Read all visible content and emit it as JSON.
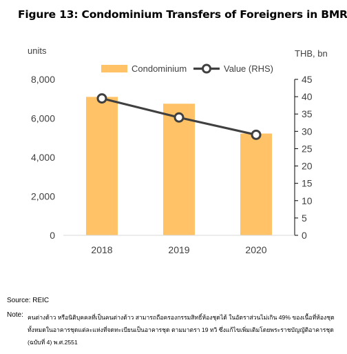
{
  "title": "Figure 13: Condominium Transfers of Foreigners in BMR",
  "y_unit_left": "units",
  "y_unit_right": "THB, bn",
  "source": "Source: REIC",
  "note_label": "Note:",
  "note_text": "คนต่างด้าว หรือนิติบุคคลที่เป็นคนต่างด้าว สามารถถือครองกรรมสิทธิ์ห้องชุดได้ ในอัตราส่วนไม่เกิน 49% ของเนื้อที่ห้องชุดทั้งหมดในอาคารชุดแต่ละแห่งที่จดทะเบียนเป็นอาคารชุด ตามมาตรา 19 ทวิ ซึ่งแก้ไขเพิ่มเติมโดยพระราชบัญญัติอาคารชุด (ฉบับที่ 4) พ.ศ.2551",
  "chart_data": {
    "type": "bar",
    "categories": [
      "2018",
      "2019",
      "2020"
    ],
    "series": [
      {
        "name": "Condominium",
        "type": "bar",
        "axis": "left",
        "values": [
          7100,
          6750,
          5220
        ]
      },
      {
        "name": "Value (RHS)",
        "type": "line",
        "axis": "right",
        "values": [
          39.5,
          34,
          29
        ]
      }
    ],
    "y_left": {
      "label": "units",
      "min": 0,
      "max": 8000,
      "step": 2000,
      "tick_labels": [
        "0",
        "2,000",
        "4,000",
        "6,000",
        "8,000"
      ]
    },
    "y_right": {
      "label": "THB, bn",
      "min": 0,
      "max": 45,
      "step": 5,
      "tick_labels": [
        "0",
        "5",
        "10",
        "15",
        "20",
        "25",
        "30",
        "35",
        "40",
        "45"
      ]
    },
    "grid": false,
    "legend": "top",
    "colors": {
      "bar": "#FFC266",
      "line": "#404040",
      "marker_fill": "#ffffff"
    }
  }
}
